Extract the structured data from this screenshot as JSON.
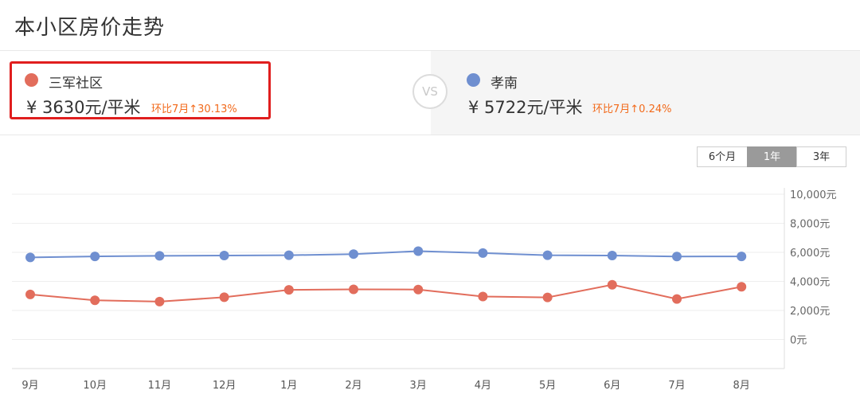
{
  "page": {
    "title": "本小区房价走势"
  },
  "compare": {
    "left": {
      "name": "三军社区",
      "price": "¥ 3630元/平米",
      "mom": "环比7月↑30.13%",
      "color": "#e26d5c"
    },
    "vs": "VS",
    "right": {
      "name": "孝南",
      "price": "¥ 5722元/平米",
      "mom": "环比7月↑0.24%",
      "color": "#6f8fd0"
    }
  },
  "range_tabs": [
    {
      "label": "6个月",
      "active": false
    },
    {
      "label": "1年",
      "active": true
    },
    {
      "label": "3年",
      "active": false
    }
  ],
  "chart_data": {
    "type": "line",
    "categories": [
      "9月",
      "10月",
      "11月",
      "12月",
      "1月",
      "2月",
      "3月",
      "4月",
      "5月",
      "6月",
      "7月",
      "8月"
    ],
    "y_ticks": [
      "10,000元",
      "8,000元",
      "6,000元",
      "4,000元",
      "2,000元",
      "0元"
    ],
    "ylim": [
      -2000,
      10000
    ],
    "grid": true,
    "series": [
      {
        "name": "孝南",
        "color": "#6f8fd0",
        "values": [
          5650,
          5720,
          5760,
          5780,
          5800,
          5880,
          6080,
          5950,
          5800,
          5780,
          5710,
          5722
        ]
      },
      {
        "name": "三军社区",
        "color": "#e26d5c",
        "values": [
          3100,
          2700,
          2610,
          2910,
          3420,
          3450,
          3440,
          2960,
          2900,
          3770,
          2790,
          3630
        ]
      }
    ]
  }
}
